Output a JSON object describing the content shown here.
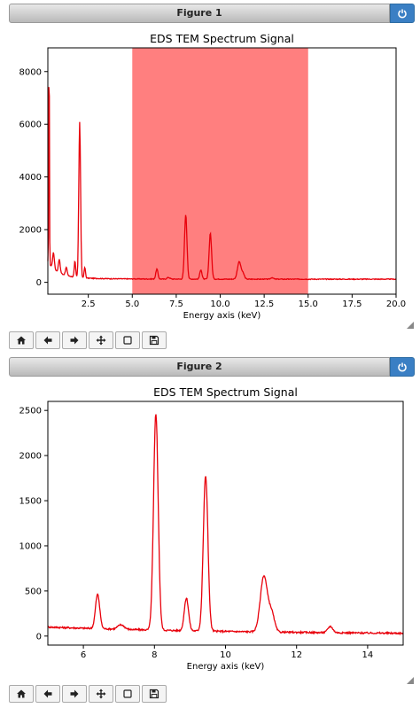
{
  "figures": [
    {
      "window_title": "Figure 1",
      "chart_data": {
        "type": "line",
        "title": "EDS TEM Spectrum Signal",
        "xlabel": "Energy axis (keV)",
        "ylabel": "",
        "xlim": [
          0.2,
          20.0
        ],
        "ylim": [
          -450,
          8900
        ],
        "xticks": [
          2.5,
          5.0,
          7.5,
          10.0,
          12.5,
          15.0,
          17.5,
          20.0
        ],
        "xtick_labels": [
          "2.5",
          "5.0",
          "7.5",
          "10.0",
          "12.5",
          "15.0",
          "17.5",
          "20.0"
        ],
        "yticks": [
          0,
          2000,
          4000,
          6000,
          8000
        ],
        "ytick_labels": [
          "0",
          "2000",
          "4000",
          "6000",
          "8000"
        ],
        "span": [
          5.0,
          15.0
        ],
        "span_color": "#ff7f7f",
        "line_color": "#e8000b",
        "peaks": [
          {
            "x": 0.27,
            "height": 8400,
            "width": 0.02
          },
          {
            "x": 0.52,
            "height": 600,
            "width": 0.05
          },
          {
            "x": 0.85,
            "height": 500,
            "width": 0.05
          },
          {
            "x": 1.25,
            "height": 300,
            "width": 0.05
          },
          {
            "x": 1.74,
            "height": 600,
            "width": 0.04
          },
          {
            "x": 2.01,
            "height": 5900,
            "width": 0.05
          },
          {
            "x": 2.3,
            "height": 400,
            "width": 0.04
          },
          {
            "x": 6.4,
            "height": 380,
            "width": 0.06
          },
          {
            "x": 7.06,
            "height": 60,
            "width": 0.08
          },
          {
            "x": 8.04,
            "height": 2450,
            "width": 0.07
          },
          {
            "x": 8.9,
            "height": 360,
            "width": 0.06
          },
          {
            "x": 9.44,
            "height": 1750,
            "width": 0.07
          },
          {
            "x": 11.08,
            "height": 660,
            "width": 0.1
          },
          {
            "x": 11.3,
            "height": 200,
            "width": 0.08
          },
          {
            "x": 12.95,
            "height": 60,
            "width": 0.07
          }
        ]
      },
      "toolbar": [
        "home-icon",
        "back-arrow-icon",
        "forward-arrow-icon",
        "pan-icon",
        "zoom-rect-icon",
        "save-icon"
      ]
    },
    {
      "window_title": "Figure 2",
      "chart_data": {
        "type": "line",
        "title": "EDS TEM Spectrum Signal",
        "xlabel": "Energy axis (keV)",
        "ylabel": "",
        "xlim": [
          5.0,
          15.0
        ],
        "ylim": [
          -100,
          2600
        ],
        "xticks": [
          6,
          8,
          10,
          12,
          14
        ],
        "xtick_labels": [
          "6",
          "8",
          "10",
          "12",
          "14"
        ],
        "yticks": [
          0,
          500,
          1000,
          1500,
          2000,
          2500
        ],
        "ytick_labels": [
          "0",
          "500",
          "1000",
          "1500",
          "2000",
          "2500"
        ],
        "line_color": "#e8000b",
        "peaks": [
          {
            "x": 6.4,
            "height": 380,
            "width": 0.06
          },
          {
            "x": 7.06,
            "height": 50,
            "width": 0.09
          },
          {
            "x": 8.04,
            "height": 2400,
            "width": 0.065
          },
          {
            "x": 8.9,
            "height": 360,
            "width": 0.06
          },
          {
            "x": 9.44,
            "height": 1720,
            "width": 0.065
          },
          {
            "x": 11.08,
            "height": 620,
            "width": 0.1
          },
          {
            "x": 11.3,
            "height": 200,
            "width": 0.08
          },
          {
            "x": 12.95,
            "height": 70,
            "width": 0.07
          }
        ]
      },
      "toolbar": [
        "home-icon",
        "back-arrow-icon",
        "forward-arrow-icon",
        "pan-icon",
        "zoom-rect-icon",
        "save-icon"
      ]
    }
  ]
}
